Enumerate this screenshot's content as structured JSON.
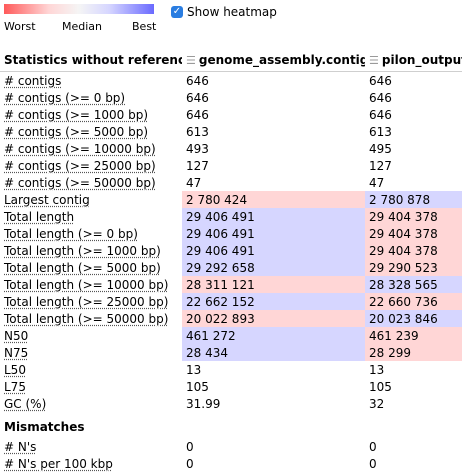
{
  "legend": {
    "worst": "Worst",
    "median": "Median",
    "best": "Best"
  },
  "heatmap_toggle": {
    "label": "Show heatmap",
    "checked": true
  },
  "colors": {
    "worst": "#ffd6d6",
    "best": "#d6d6ff",
    "neutral": "#ffffff"
  },
  "section1": {
    "title": "Statistics without reference",
    "columns": [
      "genome_assembly.contigs",
      "pilon_output"
    ],
    "rows": [
      {
        "metric": "# contigs",
        "values": [
          "646",
          "646"
        ],
        "heat": [
          "",
          ""
        ]
      },
      {
        "metric": "# contigs (>= 0 bp)",
        "values": [
          "646",
          "646"
        ],
        "heat": [
          "",
          ""
        ]
      },
      {
        "metric": "# contigs (>= 1000 bp)",
        "values": [
          "646",
          "646"
        ],
        "heat": [
          "",
          ""
        ]
      },
      {
        "metric": "# contigs (>= 5000 bp)",
        "values": [
          "613",
          "613"
        ],
        "heat": [
          "",
          ""
        ]
      },
      {
        "metric": "# contigs (>= 10000 bp)",
        "values": [
          "493",
          "495"
        ],
        "heat": [
          "",
          ""
        ]
      },
      {
        "metric": "# contigs (>= 25000 bp)",
        "values": [
          "127",
          "127"
        ],
        "heat": [
          "",
          ""
        ]
      },
      {
        "metric": "# contigs (>= 50000 bp)",
        "values": [
          "47",
          "47"
        ],
        "heat": [
          "",
          ""
        ]
      },
      {
        "metric": "Largest contig",
        "values": [
          "2 780 424",
          "2 780 878"
        ],
        "heat": [
          "worst",
          "best"
        ]
      },
      {
        "metric": "Total length",
        "values": [
          "29 406 491",
          "29 404 378"
        ],
        "heat": [
          "best",
          "worst"
        ]
      },
      {
        "metric": "Total length (>= 0 bp)",
        "values": [
          "29 406 491",
          "29 404 378"
        ],
        "heat": [
          "best",
          "worst"
        ]
      },
      {
        "metric": "Total length (>= 1000 bp)",
        "values": [
          "29 406 491",
          "29 404 378"
        ],
        "heat": [
          "best",
          "worst"
        ]
      },
      {
        "metric": "Total length (>= 5000 bp)",
        "values": [
          "29 292 658",
          "29 290 523"
        ],
        "heat": [
          "best",
          "worst"
        ]
      },
      {
        "metric": "Total length (>= 10000 bp)",
        "values": [
          "28 311 121",
          "28 328 565"
        ],
        "heat": [
          "worst",
          "best"
        ]
      },
      {
        "metric": "Total length (>= 25000 bp)",
        "values": [
          "22 662 152",
          "22 660 736"
        ],
        "heat": [
          "best",
          "worst"
        ]
      },
      {
        "metric": "Total length (>= 50000 bp)",
        "values": [
          "20 022 893",
          "20 023 846"
        ],
        "heat": [
          "worst",
          "best"
        ]
      },
      {
        "metric": "N50",
        "values": [
          "461 272",
          "461 239"
        ],
        "heat": [
          "best",
          "worst"
        ]
      },
      {
        "metric": "N75",
        "values": [
          "28 434",
          "28 299"
        ],
        "heat": [
          "best",
          "worst"
        ]
      },
      {
        "metric": "L50",
        "values": [
          "13",
          "13"
        ],
        "heat": [
          "",
          ""
        ]
      },
      {
        "metric": "L75",
        "values": [
          "105",
          "105"
        ],
        "heat": [
          "",
          ""
        ]
      },
      {
        "metric": "GC (%)",
        "values": [
          "31.99",
          "32"
        ],
        "heat": [
          "",
          ""
        ]
      }
    ]
  },
  "section2": {
    "title": "Mismatches",
    "rows": [
      {
        "metric": "# N's",
        "values": [
          "0",
          "0"
        ],
        "heat": [
          "",
          ""
        ]
      },
      {
        "metric": "# N's per 100 kbp",
        "values": [
          "0",
          "0"
        ],
        "heat": [
          "",
          ""
        ]
      }
    ]
  }
}
